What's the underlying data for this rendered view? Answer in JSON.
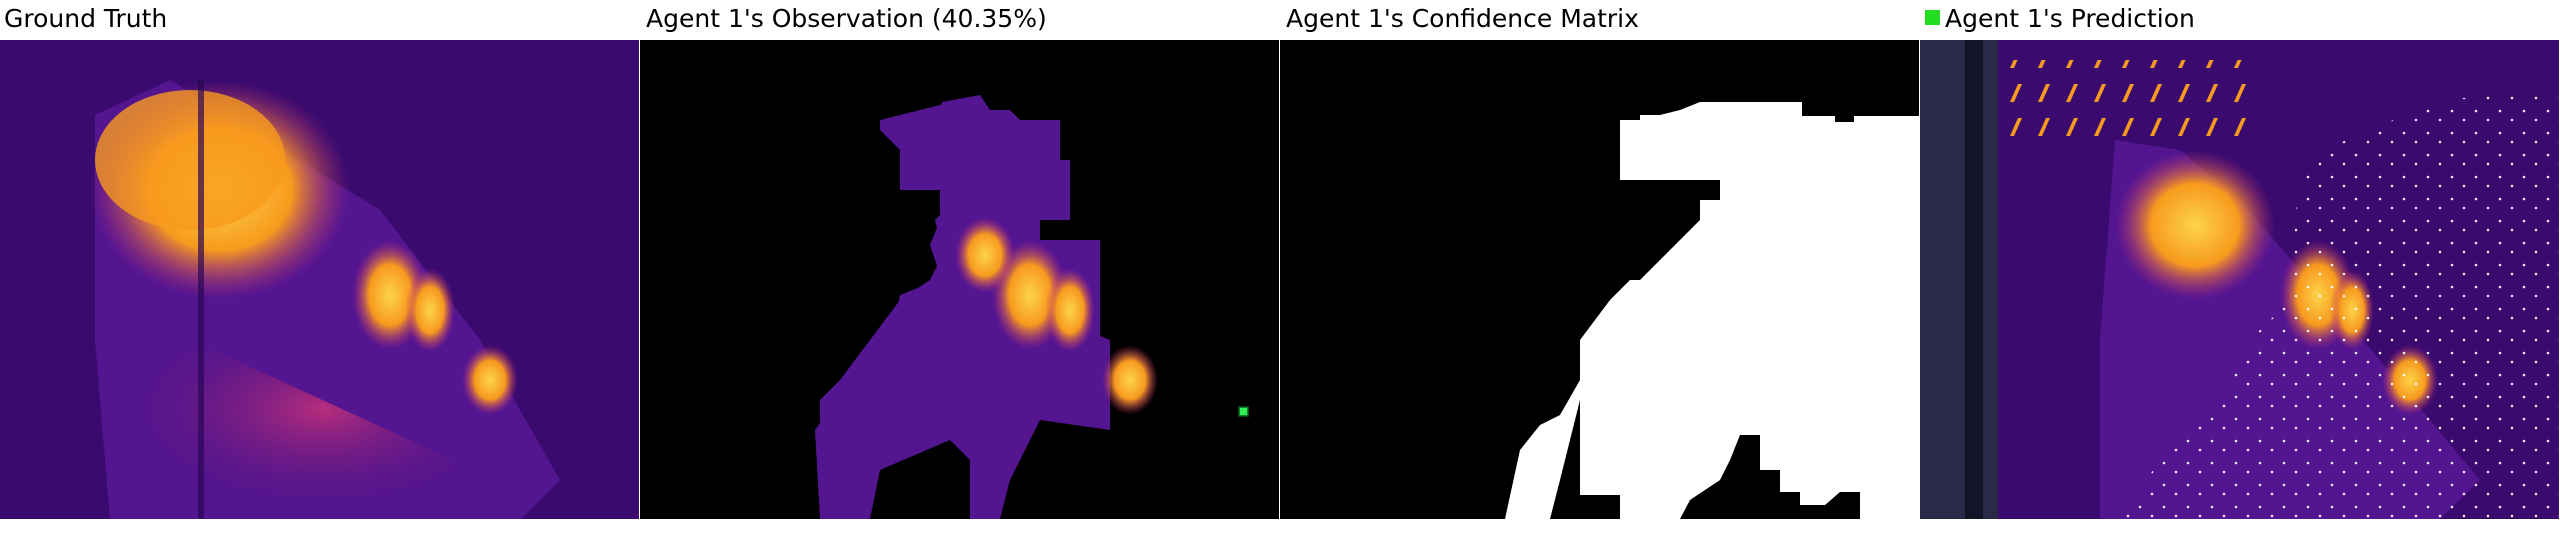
{
  "panels": {
    "ground_truth": {
      "title": "Ground Truth"
    },
    "observation": {
      "title": "Agent 1's Observation (40.35%)"
    },
    "confidence": {
      "title": "Agent 1's Confidence Matrix"
    },
    "prediction": {
      "title": "Agent 1's Prediction",
      "legend_color": "#22dd22"
    }
  },
  "colors": {
    "background_dark": "#3a0a6e",
    "heat_mid": "#c2307a",
    "heat_high": "#f79a1e",
    "heat_peak": "#fdd44a",
    "mask_black": "#000000",
    "mask_white": "#ffffff",
    "agent_marker": "#33ee55"
  }
}
